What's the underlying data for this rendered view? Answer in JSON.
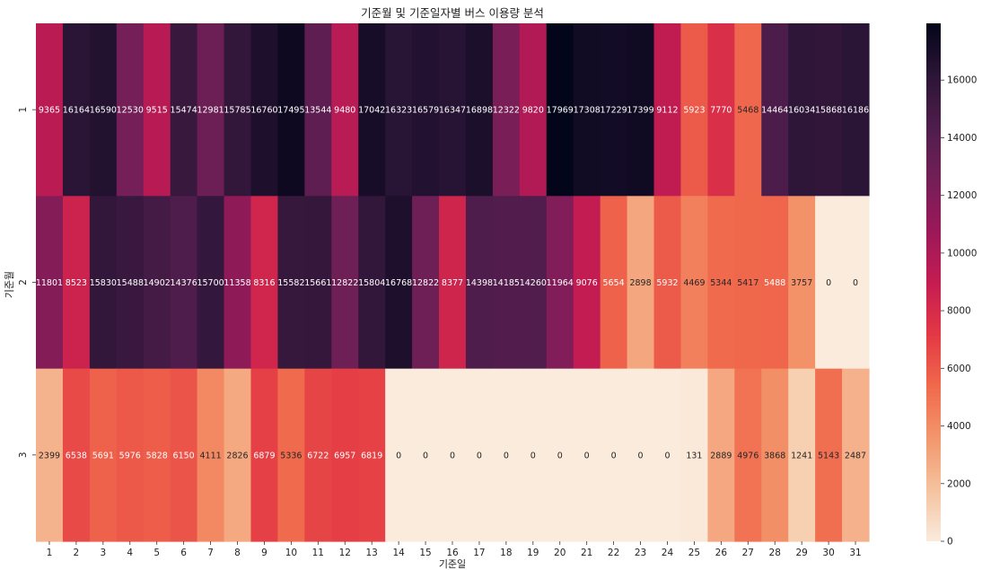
{
  "chart_data": {
    "type": "heatmap",
    "title": "기준월 및 기준일자별 버스 이용량 분석",
    "xlabel": "기준일",
    "ylabel": "기준월",
    "x_categories": [
      "1",
      "2",
      "3",
      "4",
      "5",
      "6",
      "7",
      "8",
      "9",
      "10",
      "11",
      "12",
      "13",
      "14",
      "15",
      "16",
      "17",
      "18",
      "19",
      "20",
      "21",
      "22",
      "23",
      "24",
      "25",
      "26",
      "27",
      "28",
      "29",
      "30",
      "31"
    ],
    "y_categories": [
      "1",
      "2",
      "3"
    ],
    "values": [
      [
        9365,
        16164,
        16590,
        12530,
        9515,
        15474,
        12981,
        15785,
        16760,
        17495,
        13544,
        9480,
        17042,
        16323,
        16579,
        16347,
        16898,
        12322,
        9820,
        17969,
        17308,
        17229,
        17399,
        9112,
        5923,
        7770,
        5468,
        14464,
        16034,
        15868,
        16186
      ],
      [
        11801,
        8523,
        15830,
        15488,
        14902,
        14376,
        15700,
        11358,
        8316,
        15582,
        15661,
        12822,
        15804,
        16768,
        12822,
        8377,
        14398,
        14185,
        14260,
        11964,
        9076,
        5654,
        2898,
        5932,
        4469,
        5344,
        5417,
        5488,
        3757,
        0,
        0
      ],
      [
        2399,
        6538,
        5691,
        5976,
        5828,
        6150,
        4111,
        2826,
        6879,
        5336,
        6722,
        6957,
        6819,
        0,
        0,
        0,
        0,
        0,
        0,
        0,
        0,
        0,
        0,
        0,
        131,
        2889,
        4976,
        3868,
        1241,
        5143,
        2487
      ]
    ],
    "colormap": "rocket_r",
    "colorbar": {
      "vmin": 0,
      "vmax": 17969,
      "ticks": [
        0,
        2000,
        4000,
        6000,
        8000,
        10000,
        12000,
        14000,
        16000
      ]
    }
  }
}
